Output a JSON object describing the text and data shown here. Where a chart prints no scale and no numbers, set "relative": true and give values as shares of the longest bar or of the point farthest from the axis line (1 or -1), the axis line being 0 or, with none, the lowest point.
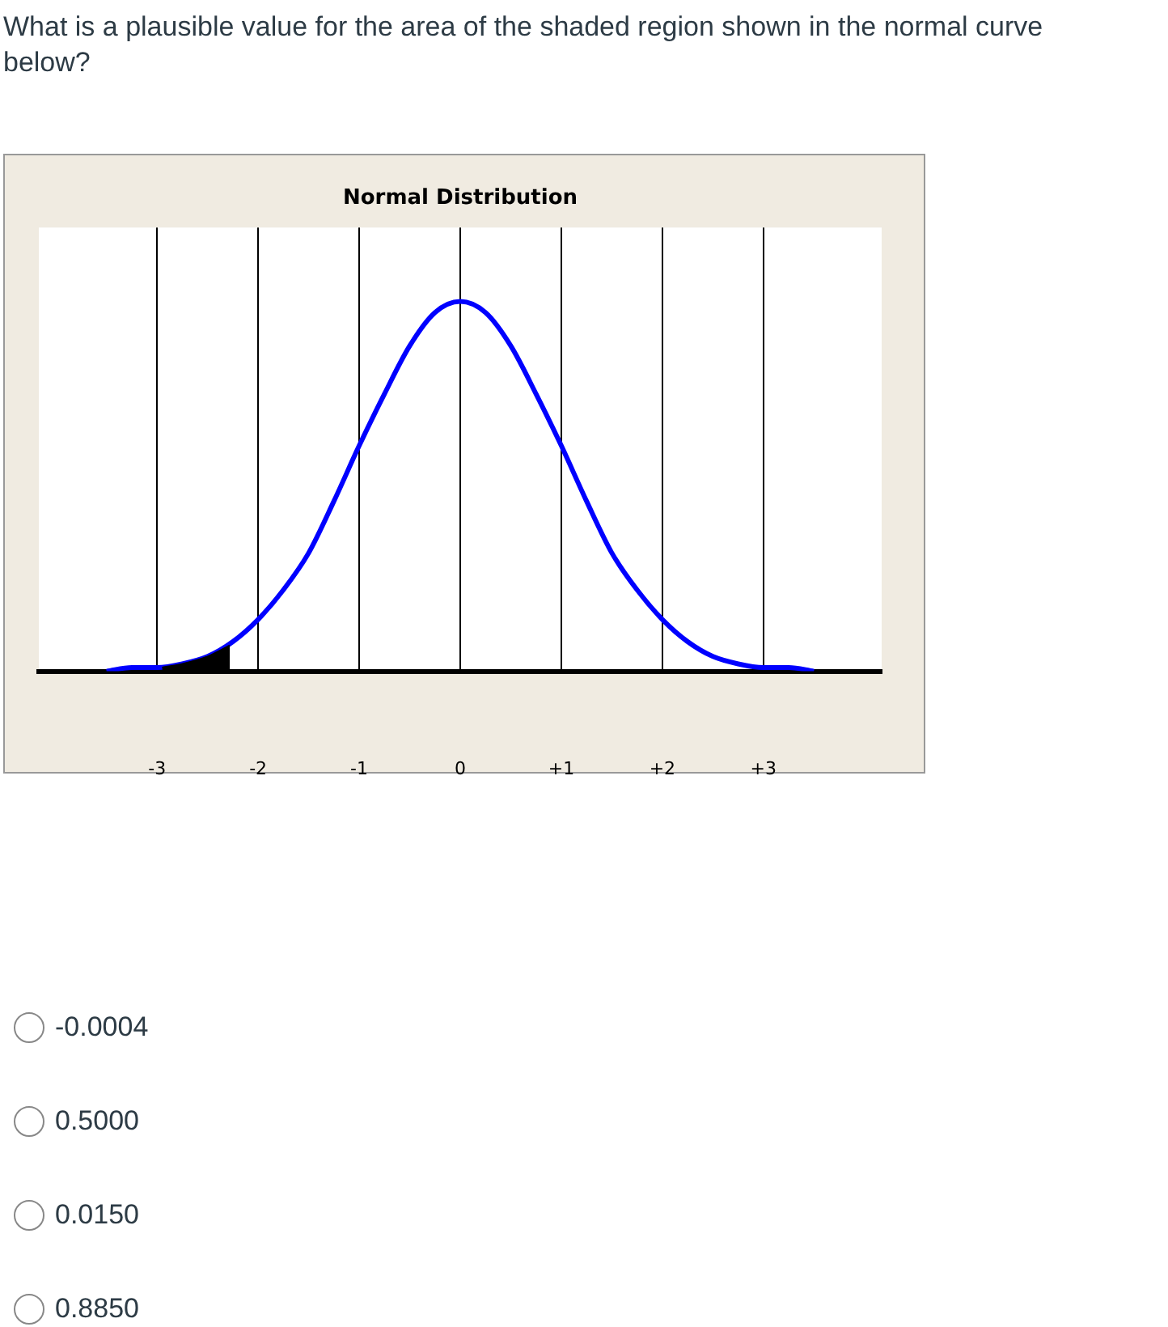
{
  "chart_data": {
    "type": "line",
    "title": "Normal Distribution",
    "relative": true,
    "annotations": [
      "What is a plausible value for the area of the shaded region shown in the normal curve below?",
      "-0.0004",
      "0.5000",
      "0.0150",
      "0.8850"
    ],
    "xlim": [
      -4.17,
      4.17
    ],
    "xticks": [
      {
        "value": -3,
        "label": "-3"
      },
      {
        "value": -2,
        "label": "-2"
      },
      {
        "value": -1,
        "label": "-1"
      },
      0,
      {
        "value": 1,
        "label": "+1"
      },
      {
        "value": 2,
        "label": "+2"
      },
      {
        "value": 3,
        "label": "+3"
      }
    ],
    "grid": "x",
    "marker": "none",
    "line_style": "solid",
    "series": [
      {
        "type": "line",
        "color": "#0000ff",
        "x": [
          -3.5,
          -3.25,
          -3,
          -2.75,
          -2.5,
          -2.25,
          -2,
          -1.75,
          -1.5,
          -1.25,
          -1,
          -0.75,
          -0.5,
          -0.25,
          0,
          0.25,
          0.5,
          0.75,
          1,
          1.25,
          1.5,
          1.75,
          2,
          2.25,
          2.5,
          2.75,
          3,
          3.25,
          3.5
        ],
        "values": [
          0,
          0.01,
          0.01,
          0.02,
          0.04,
          0.08,
          0.14,
          0.22,
          0.32,
          0.46,
          0.61,
          0.75,
          0.88,
          0.97,
          1,
          0.97,
          0.88,
          0.75,
          0.61,
          0.46,
          0.32,
          0.22,
          0.14,
          0.08,
          0.04,
          0.02,
          0.01,
          0.01,
          0
        ]
      },
      {
        "type": "area",
        "color": "#000000",
        "x": [
          -2.95,
          -2.75,
          -2.5,
          -2.28
        ],
        "values": [
          0.01,
          0.02,
          0.04,
          0.07
        ]
      }
    ]
  }
}
